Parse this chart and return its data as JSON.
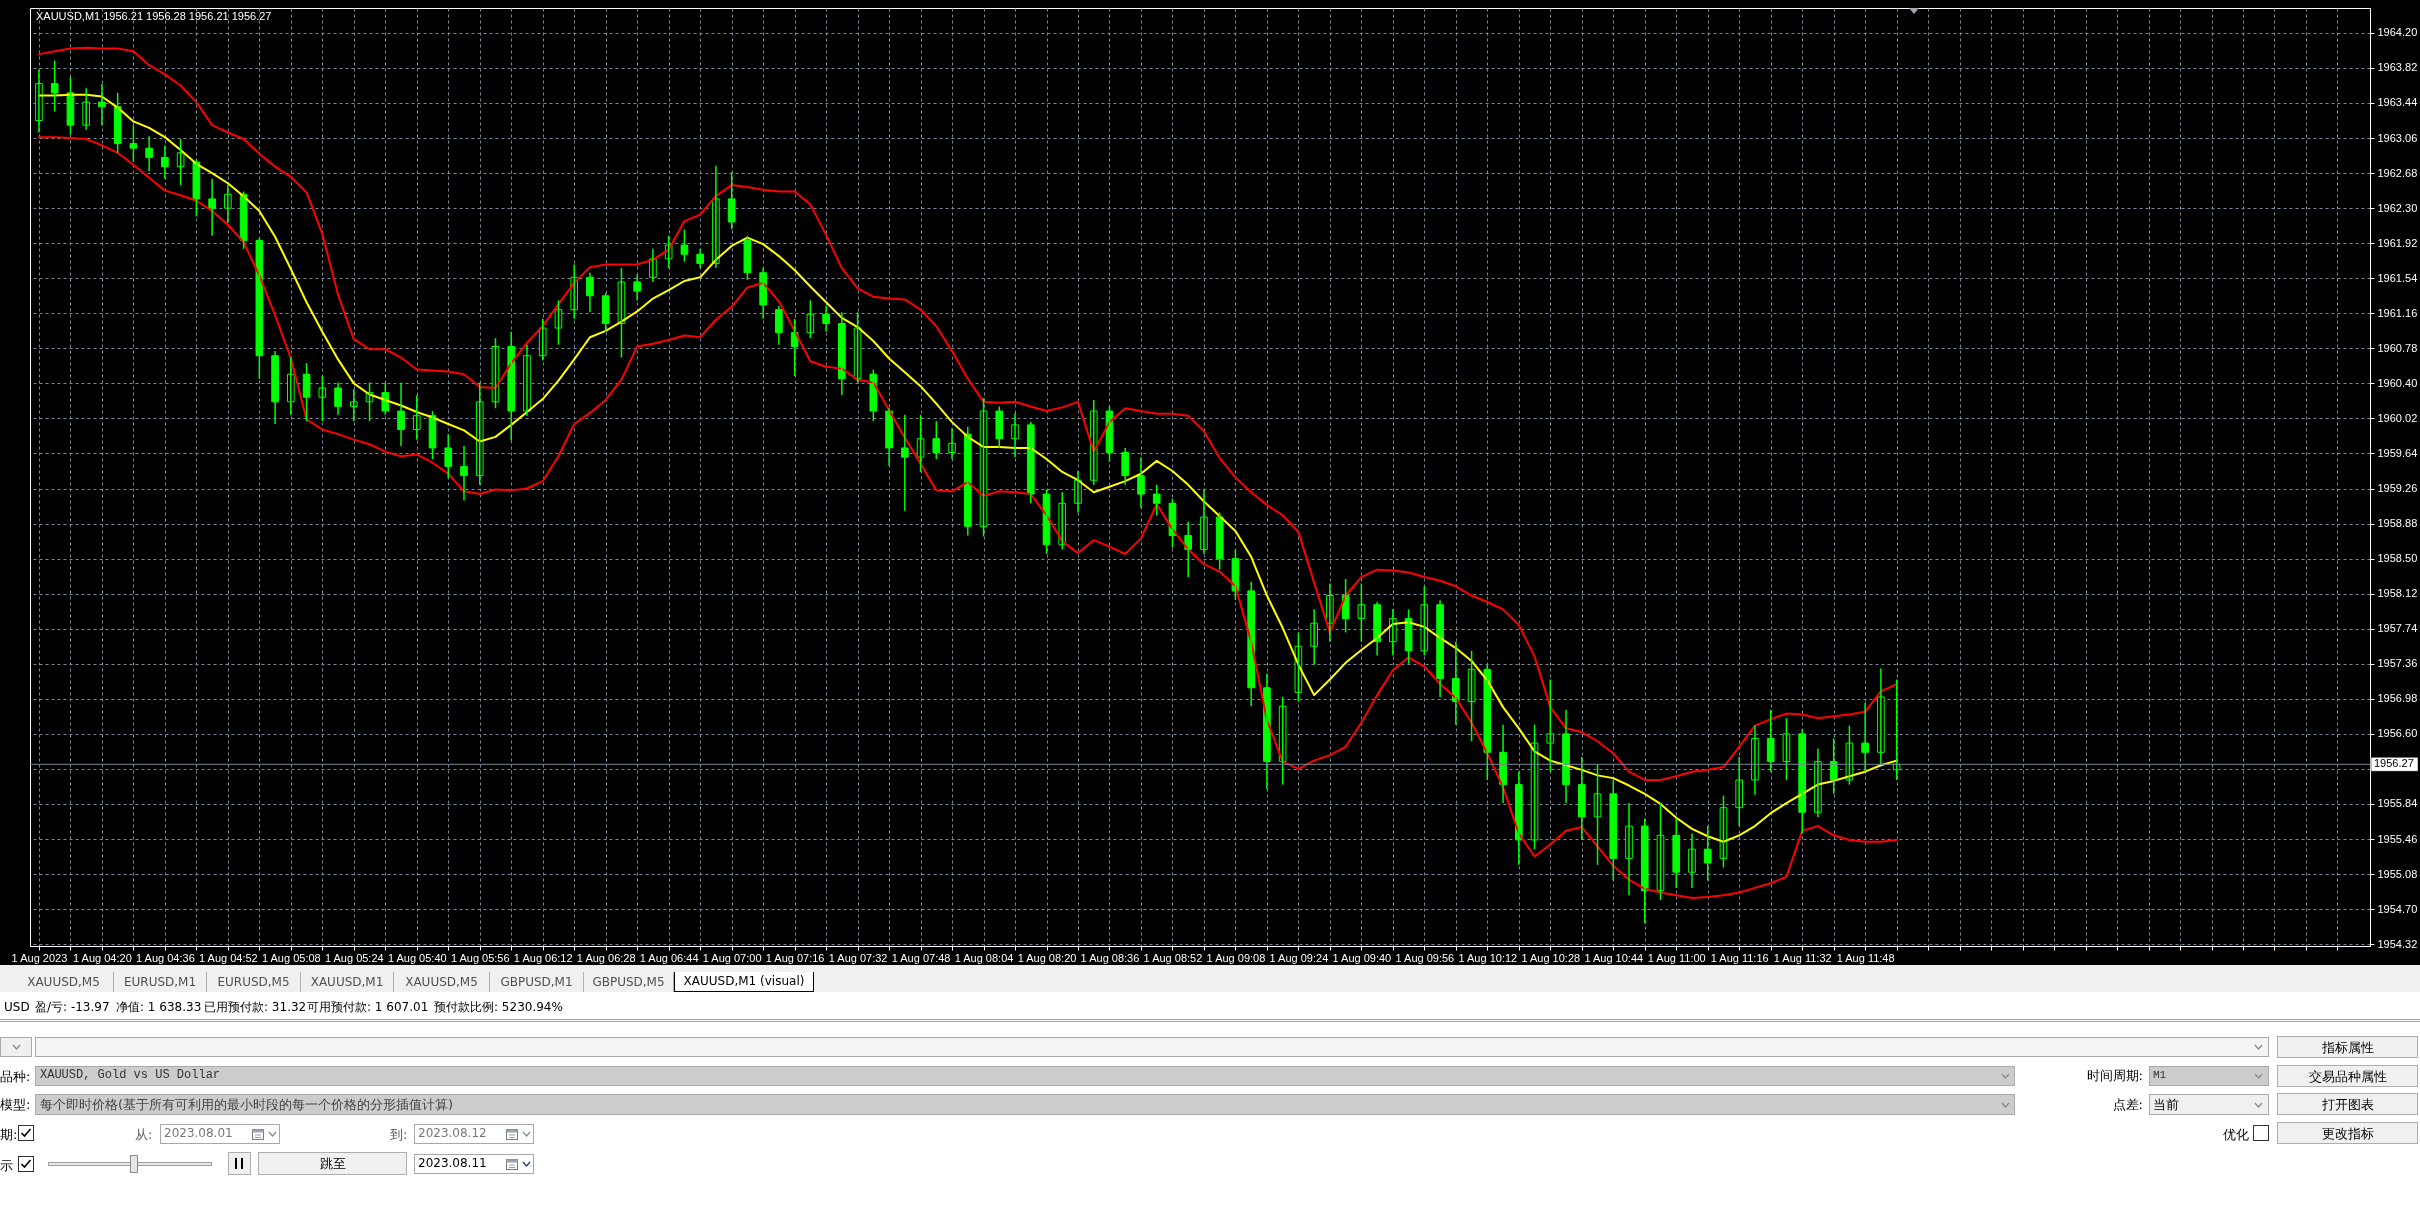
{
  "chart_data": {
    "type": "candlestick",
    "title": "XAUUSD,M1 1956.21 1956.28 1956.21 1956.27",
    "x": [
      "2023-08-01T04:04",
      "2023-08-01T04:08",
      "2023-08-01T04:12",
      "2023-08-01T04:16",
      "2023-08-01T04:20",
      "2023-08-01T04:24",
      "2023-08-01T04:28",
      "2023-08-01T04:32",
      "2023-08-01T04:36",
      "2023-08-01T04:40",
      "2023-08-01T04:44",
      "2023-08-01T04:48",
      "2023-08-01T04:52",
      "2023-08-01T04:56",
      "2023-08-01T05:00",
      "2023-08-01T05:04",
      "2023-08-01T05:08",
      "2023-08-01T05:12",
      "2023-08-01T05:16",
      "2023-08-01T05:20",
      "2023-08-01T05:24",
      "2023-08-01T05:28",
      "2023-08-01T05:32",
      "2023-08-01T05:36",
      "2023-08-01T05:40",
      "2023-08-01T05:44",
      "2023-08-01T05:48",
      "2023-08-01T05:52",
      "2023-08-01T05:56",
      "2023-08-01T06:00",
      "2023-08-01T06:04",
      "2023-08-01T06:08",
      "2023-08-01T06:12",
      "2023-08-01T06:16",
      "2023-08-01T06:20",
      "2023-08-01T06:24",
      "2023-08-01T06:28",
      "2023-08-01T06:32",
      "2023-08-01T06:36",
      "2023-08-01T06:40",
      "2023-08-01T06:44",
      "2023-08-01T06:48",
      "2023-08-01T06:52",
      "2023-08-01T06:56",
      "2023-08-01T07:00",
      "2023-08-01T07:04",
      "2023-08-01T07:08",
      "2023-08-01T07:12",
      "2023-08-01T07:16",
      "2023-08-01T07:20",
      "2023-08-01T07:24",
      "2023-08-01T07:28",
      "2023-08-01T07:32",
      "2023-08-01T07:36",
      "2023-08-01T07:40",
      "2023-08-01T07:44",
      "2023-08-01T07:48",
      "2023-08-01T07:52",
      "2023-08-01T07:56",
      "2023-08-01T08:00",
      "2023-08-01T08:04",
      "2023-08-01T08:08",
      "2023-08-01T08:12",
      "2023-08-01T08:16",
      "2023-08-01T08:20",
      "2023-08-01T08:24",
      "2023-08-01T08:28",
      "2023-08-01T08:32",
      "2023-08-01T08:36",
      "2023-08-01T08:40",
      "2023-08-01T08:44",
      "2023-08-01T08:48",
      "2023-08-01T08:52",
      "2023-08-01T08:56",
      "2023-08-01T09:00",
      "2023-08-01T09:04",
      "2023-08-01T09:08",
      "2023-08-01T09:12",
      "2023-08-01T09:16",
      "2023-08-01T09:20",
      "2023-08-01T09:24",
      "2023-08-01T09:28",
      "2023-08-01T09:32",
      "2023-08-01T09:36",
      "2023-08-01T09:40",
      "2023-08-01T09:44",
      "2023-08-01T09:48",
      "2023-08-01T09:52",
      "2023-08-01T09:56",
      "2023-08-01T10:00",
      "2023-08-01T10:04",
      "2023-08-01T10:08",
      "2023-08-01T10:12",
      "2023-08-01T10:16",
      "2023-08-01T10:20",
      "2023-08-01T10:24",
      "2023-08-01T10:28",
      "2023-08-01T10:32",
      "2023-08-01T10:36",
      "2023-08-01T10:40",
      "2023-08-01T10:44",
      "2023-08-01T10:48",
      "2023-08-01T10:52",
      "2023-08-01T10:56",
      "2023-08-01T11:00",
      "2023-08-01T11:04",
      "2023-08-01T11:08",
      "2023-08-01T11:12",
      "2023-08-01T11:16",
      "2023-08-01T11:20",
      "2023-08-01T11:24",
      "2023-08-01T11:28",
      "2023-08-01T11:32",
      "2023-08-01T11:36",
      "2023-08-01T11:40",
      "2023-08-01T11:44",
      "2023-08-01T11:48",
      "2023-08-01T11:52",
      "2023-08-01T11:56"
    ],
    "ohlc": [
      [
        1963.25,
        1963.8,
        1963.12,
        1963.65
      ],
      [
        1963.65,
        1963.9,
        1963.35,
        1963.55
      ],
      [
        1963.55,
        1963.72,
        1963.1,
        1963.2
      ],
      [
        1963.2,
        1963.6,
        1963.15,
        1963.45
      ],
      [
        1963.45,
        1963.65,
        1963.2,
        1963.4
      ],
      [
        1963.4,
        1963.55,
        1962.9,
        1963.0
      ],
      [
        1963.0,
        1963.2,
        1962.8,
        1962.95
      ],
      [
        1962.95,
        1963.08,
        1962.7,
        1962.85
      ],
      [
        1962.85,
        1962.98,
        1962.62,
        1962.75
      ],
      [
        1962.75,
        1963.05,
        1962.55,
        1962.9
      ],
      [
        1962.8,
        1962.83,
        1962.21,
        1962.4
      ],
      [
        1962.4,
        1962.62,
        1962.0,
        1962.3
      ],
      [
        1962.3,
        1962.55,
        1962.14,
        1962.45
      ],
      [
        1962.45,
        1962.48,
        1961.86,
        1961.95
      ],
      [
        1961.95,
        1961.98,
        1960.45,
        1960.7
      ],
      [
        1960.7,
        1960.75,
        1959.96,
        1960.2
      ],
      [
        1960.2,
        1960.68,
        1960.06,
        1960.5
      ],
      [
        1960.5,
        1960.62,
        1959.99,
        1960.25
      ],
      [
        1960.25,
        1960.48,
        1959.99,
        1960.35
      ],
      [
        1960.35,
        1960.41,
        1960.06,
        1960.15
      ],
      [
        1960.15,
        1960.34,
        1959.99,
        1960.2
      ],
      [
        1960.2,
        1960.41,
        1959.99,
        1960.3
      ],
      [
        1960.3,
        1960.41,
        1960.06,
        1960.1
      ],
      [
        1960.1,
        1960.41,
        1959.72,
        1959.9
      ],
      [
        1959.9,
        1960.27,
        1959.79,
        1960.05
      ],
      [
        1960.05,
        1960.1,
        1959.58,
        1959.7
      ],
      [
        1959.7,
        1959.85,
        1959.37,
        1959.5
      ],
      [
        1959.5,
        1959.72,
        1959.13,
        1959.4
      ],
      [
        1959.4,
        1960.41,
        1959.3,
        1960.2
      ],
      [
        1960.2,
        1960.89,
        1960.13,
        1960.8
      ],
      [
        1960.8,
        1960.96,
        1959.78,
        1960.1
      ],
      [
        1960.1,
        1960.82,
        1960.05,
        1960.7
      ],
      [
        1960.7,
        1961.1,
        1960.65,
        1961.0
      ],
      [
        1961.0,
        1961.3,
        1960.82,
        1961.2
      ],
      [
        1961.2,
        1961.69,
        1961.1,
        1961.55
      ],
      [
        1961.55,
        1961.6,
        1961.17,
        1961.35
      ],
      [
        1961.35,
        1961.38,
        1960.96,
        1961.05
      ],
      [
        1961.05,
        1961.65,
        1960.68,
        1961.5
      ],
      [
        1961.5,
        1961.58,
        1961.3,
        1961.4
      ],
      [
        1961.55,
        1961.86,
        1961.5,
        1961.75
      ],
      [
        1961.75,
        1962.0,
        1961.65,
        1961.9
      ],
      [
        1961.9,
        1962.07,
        1961.72,
        1961.8
      ],
      [
        1961.8,
        1961.86,
        1961.65,
        1961.7
      ],
      [
        1961.7,
        1962.76,
        1961.65,
        1962.4
      ],
      [
        1962.4,
        1962.69,
        1962.07,
        1962.15
      ],
      [
        1961.95,
        1962.0,
        1961.52,
        1961.6
      ],
      [
        1961.6,
        1961.65,
        1961.1,
        1961.25
      ],
      [
        1961.2,
        1961.24,
        1960.82,
        1960.95
      ],
      [
        1960.95,
        1961.1,
        1960.48,
        1960.8
      ],
      [
        1960.95,
        1961.3,
        1960.89,
        1961.15
      ],
      [
        1961.15,
        1961.24,
        1960.96,
        1961.05
      ],
      [
        1961.05,
        1961.17,
        1960.27,
        1960.45
      ],
      [
        1960.45,
        1961.17,
        1960.41,
        1961.0
      ],
      [
        1960.5,
        1960.55,
        1959.99,
        1960.1
      ],
      [
        1960.1,
        1960.13,
        1959.51,
        1959.7
      ],
      [
        1959.7,
        1960.06,
        1959.02,
        1959.6
      ],
      [
        1959.6,
        1960.06,
        1959.44,
        1959.8
      ],
      [
        1959.8,
        1959.99,
        1959.58,
        1959.65
      ],
      [
        1959.65,
        1959.92,
        1959.58,
        1959.75
      ],
      [
        1959.85,
        1959.93,
        1958.75,
        1958.85
      ],
      [
        1958.85,
        1960.24,
        1958.74,
        1960.1
      ],
      [
        1960.1,
        1960.15,
        1959.7,
        1959.8
      ],
      [
        1959.8,
        1960.08,
        1959.6,
        1959.95
      ],
      [
        1959.95,
        1959.98,
        1959.1,
        1959.2
      ],
      [
        1959.2,
        1959.25,
        1958.55,
        1958.65
      ],
      [
        1958.65,
        1959.22,
        1958.6,
        1959.1
      ],
      [
        1959.1,
        1959.45,
        1959.0,
        1959.35
      ],
      [
        1959.35,
        1960.22,
        1959.3,
        1960.1
      ],
      [
        1960.1,
        1960.15,
        1959.55,
        1959.65
      ],
      [
        1959.65,
        1959.7,
        1959.3,
        1959.4
      ],
      [
        1959.4,
        1959.6,
        1959.05,
        1959.2
      ],
      [
        1959.2,
        1959.3,
        1958.97,
        1959.1
      ],
      [
        1959.1,
        1959.15,
        1958.62,
        1958.75
      ],
      [
        1958.75,
        1958.9,
        1958.3,
        1958.6
      ],
      [
        1958.6,
        1959.25,
        1958.55,
        1958.95
      ],
      [
        1958.95,
        1959.0,
        1958.38,
        1958.5
      ],
      [
        1958.5,
        1958.6,
        1958.05,
        1958.15
      ],
      [
        1958.15,
        1958.25,
        1956.9,
        1957.1
      ],
      [
        1957.1,
        1957.25,
        1956.0,
        1956.3
      ],
      [
        1956.3,
        1957.0,
        1956.05,
        1956.9
      ],
      [
        1957.05,
        1957.7,
        1956.95,
        1957.55
      ],
      [
        1957.55,
        1957.95,
        1957.35,
        1957.8
      ],
      [
        1957.8,
        1958.23,
        1957.6,
        1958.1
      ],
      [
        1958.1,
        1958.28,
        1957.7,
        1957.85
      ],
      [
        1957.85,
        1958.23,
        1957.6,
        1958.0
      ],
      [
        1958.0,
        1958.03,
        1957.45,
        1957.6
      ],
      [
        1957.6,
        1957.95,
        1957.45,
        1957.85
      ],
      [
        1957.85,
        1957.95,
        1957.36,
        1957.5
      ],
      [
        1957.5,
        1958.2,
        1957.45,
        1958.0
      ],
      [
        1958.0,
        1958.05,
        1957.0,
        1957.2
      ],
      [
        1957.2,
        1957.6,
        1956.7,
        1956.95
      ],
      [
        1956.95,
        1957.5,
        1956.52,
        1957.3
      ],
      [
        1957.3,
        1957.35,
        1956.1,
        1956.4
      ],
      [
        1956.4,
        1956.7,
        1955.85,
        1956.05
      ],
      [
        1956.05,
        1956.19,
        1955.18,
        1955.45
      ],
      [
        1955.45,
        1956.7,
        1955.35,
        1956.5
      ],
      [
        1956.5,
        1957.19,
        1956.19,
        1956.6
      ],
      [
        1956.6,
        1956.86,
        1955.85,
        1956.05
      ],
      [
        1956.05,
        1956.35,
        1955.45,
        1955.7
      ],
      [
        1955.7,
        1956.27,
        1955.18,
        1955.95
      ],
      [
        1955.95,
        1956.1,
        1955.01,
        1955.25
      ],
      [
        1955.25,
        1955.85,
        1954.85,
        1955.6
      ],
      [
        1955.6,
        1955.68,
        1954.55,
        1954.9
      ],
      [
        1954.9,
        1955.85,
        1954.8,
        1955.5
      ],
      [
        1955.5,
        1955.68,
        1954.93,
        1955.1
      ],
      [
        1955.1,
        1955.52,
        1954.93,
        1955.35
      ],
      [
        1955.35,
        1955.6,
        1955.01,
        1955.2
      ],
      [
        1955.25,
        1955.93,
        1955.15,
        1955.8
      ],
      [
        1955.8,
        1956.35,
        1955.6,
        1956.1
      ],
      [
        1956.1,
        1956.69,
        1955.94,
        1956.55
      ],
      [
        1956.55,
        1956.86,
        1956.19,
        1956.3
      ],
      [
        1956.3,
        1956.77,
        1956.1,
        1956.6
      ],
      [
        1956.6,
        1956.65,
        1955.52,
        1955.75
      ],
      [
        1955.75,
        1956.44,
        1955.7,
        1956.3
      ],
      [
        1956.3,
        1956.55,
        1955.95,
        1956.1
      ],
      [
        1956.1,
        1956.69,
        1956.05,
        1956.5
      ],
      [
        1956.5,
        1956.94,
        1956.19,
        1956.4
      ],
      [
        1956.4,
        1957.31,
        1956.27,
        1957.0
      ],
      [
        1956.21,
        1957.19,
        1956.1,
        1956.27
      ]
    ],
    "color": "#00ff00",
    "series": [
      {
        "type": "line",
        "color": "#ff0000",
        "values": [
          1963.97,
          1964.0,
          1964.03,
          1964.04,
          1964.03,
          1964.03,
          1964.0,
          1963.85,
          1963.75,
          1963.63,
          1963.45,
          1963.2,
          1963.12,
          1963.05,
          1962.89,
          1962.75,
          1962.64,
          1962.47,
          1962.02,
          1961.36,
          1960.88,
          1960.77,
          1960.77,
          1960.68,
          1960.55,
          1960.54,
          1960.53,
          1960.5,
          1960.36,
          1960.35,
          1960.62,
          1960.84,
          1961.02,
          1961.26,
          1961.49,
          1961.66,
          1961.69,
          1961.69,
          1961.69,
          1961.74,
          1961.85,
          1962.16,
          1962.23,
          1962.43,
          1962.55,
          1962.53,
          1962.5,
          1962.48,
          1962.48,
          1962.34,
          1962.01,
          1961.65,
          1961.43,
          1961.34,
          1961.32,
          1961.31,
          1961.2,
          1961.02,
          1960.75,
          1960.45,
          1960.2,
          1960.19,
          1960.2,
          1960.15,
          1960.1,
          1960.14,
          1960.2,
          1959.66,
          1959.98,
          1960.13,
          1960.1,
          1960.07,
          1960.07,
          1960.05,
          1959.88,
          1959.59,
          1959.38,
          1959.22,
          1959.08,
          1958.97,
          1958.79,
          1958.24,
          1957.7,
          1958.1,
          1958.3,
          1958.38,
          1958.37,
          1958.35,
          1958.3,
          1958.26,
          1958.2,
          1958.1,
          1958.03,
          1957.95,
          1957.78,
          1957.44,
          1956.89,
          1956.66,
          1956.62,
          1956.52,
          1956.39,
          1956.19,
          1956.1,
          1956.1,
          1956.14,
          1956.19,
          1956.21,
          1956.24,
          1956.46,
          1956.69,
          1956.76,
          1956.82,
          1956.81,
          1956.77,
          1956.79,
          1956.81,
          1956.84,
          1957.06,
          1957.14
        ]
      },
      {
        "type": "line",
        "color": "#ffff00",
        "values": [
          1963.52,
          1963.52,
          1963.53,
          1963.53,
          1963.51,
          1963.39,
          1963.24,
          1963.17,
          1963.07,
          1962.93,
          1962.78,
          1962.68,
          1962.57,
          1962.43,
          1962.27,
          1961.99,
          1961.64,
          1961.28,
          1960.96,
          1960.66,
          1960.4,
          1960.28,
          1960.22,
          1960.16,
          1960.09,
          1960.03,
          1959.96,
          1959.89,
          1959.77,
          1959.82,
          1959.95,
          1960.09,
          1960.23,
          1960.43,
          1960.66,
          1960.9,
          1960.97,
          1961.07,
          1961.18,
          1961.32,
          1961.41,
          1961.51,
          1961.55,
          1961.74,
          1961.89,
          1961.98,
          1961.91,
          1961.78,
          1961.63,
          1961.45,
          1961.28,
          1961.11,
          1961.01,
          1960.86,
          1960.67,
          1960.52,
          1960.37,
          1960.18,
          1959.98,
          1959.82,
          1959.71,
          1959.71,
          1959.7,
          1959.7,
          1959.58,
          1959.44,
          1959.35,
          1959.22,
          1959.28,
          1959.34,
          1959.42,
          1959.56,
          1959.45,
          1959.3,
          1959.12,
          1958.96,
          1958.8,
          1958.52,
          1958.1,
          1957.75,
          1957.35,
          1957.02,
          1957.19,
          1957.37,
          1957.51,
          1957.64,
          1957.79,
          1957.81,
          1957.76,
          1957.64,
          1957.53,
          1957.39,
          1957.18,
          1956.89,
          1956.66,
          1956.41,
          1956.31,
          1956.26,
          1956.21,
          1956.15,
          1956.12,
          1956.04,
          1955.95,
          1955.84,
          1955.69,
          1955.57,
          1955.49,
          1955.43,
          1955.5,
          1955.6,
          1955.74,
          1955.85,
          1955.95,
          1956.05,
          1956.09,
          1956.14,
          1956.19,
          1956.26,
          1956.31
        ]
      },
      {
        "type": "line",
        "color": "#ff0000",
        "values": [
          1963.07,
          1963.07,
          1963.06,
          1963.05,
          1962.98,
          1962.9,
          1962.77,
          1962.63,
          1962.49,
          1962.44,
          1962.38,
          1962.27,
          1962.12,
          1961.93,
          1961.57,
          1961.14,
          1960.67,
          1960.01,
          1959.9,
          1959.85,
          1959.79,
          1959.74,
          1959.66,
          1959.61,
          1959.63,
          1959.54,
          1959.42,
          1959.23,
          1959.2,
          1959.25,
          1959.24,
          1959.26,
          1959.34,
          1959.61,
          1959.96,
          1960.08,
          1960.22,
          1960.44,
          1960.8,
          1960.83,
          1960.87,
          1960.92,
          1960.9,
          1961.09,
          1961.23,
          1961.44,
          1961.49,
          1961.29,
          1960.97,
          1960.64,
          1960.58,
          1960.56,
          1960.44,
          1960.41,
          1960.11,
          1959.81,
          1959.53,
          1959.24,
          1959.23,
          1959.33,
          1959.18,
          1959.23,
          1959.22,
          1959.2,
          1958.97,
          1958.69,
          1958.56,
          1958.7,
          1958.63,
          1958.55,
          1958.72,
          1959.09,
          1958.82,
          1958.6,
          1958.44,
          1958.36,
          1958.2,
          1957.6,
          1956.75,
          1956.3,
          1956.22,
          1956.31,
          1956.37,
          1956.46,
          1956.72,
          1957.02,
          1957.29,
          1957.43,
          1957.33,
          1957.14,
          1956.99,
          1956.72,
          1956.39,
          1956.02,
          1955.52,
          1955.27,
          1955.4,
          1955.55,
          1955.59,
          1955.38,
          1955.17,
          1955.02,
          1954.92,
          1954.88,
          1954.85,
          1954.82,
          1954.83,
          1954.85,
          1954.88,
          1954.93,
          1954.98,
          1955.05,
          1955.55,
          1955.6,
          1955.5,
          1955.45,
          1955.43,
          1955.43,
          1955.45
        ]
      }
    ],
    "xlim": [
      "2023-08-01T04:03",
      "2023-08-01T13:55"
    ],
    "xticks": [
      {
        "value": "2023-08-01T04:04",
        "label": "1 Aug 2023"
      },
      {
        "value": "2023-08-01T04:12",
        "label": null
      },
      {
        "value": "2023-08-01T04:20",
        "label": "1 Aug 04:20"
      },
      {
        "value": "2023-08-01T04:28",
        "label": null
      },
      {
        "value": "2023-08-01T04:36",
        "label": "1 Aug 04:36"
      },
      {
        "value": "2023-08-01T04:44",
        "label": null
      },
      {
        "value": "2023-08-01T04:52",
        "label": "1 Aug 04:52"
      },
      {
        "value": "2023-08-01T05:00",
        "label": null
      },
      {
        "value": "2023-08-01T05:08",
        "label": "1 Aug 05:08"
      },
      {
        "value": "2023-08-01T05:16",
        "label": null
      },
      {
        "value": "2023-08-01T05:24",
        "label": "1 Aug 05:24"
      },
      {
        "value": "2023-08-01T05:32",
        "label": null
      },
      {
        "value": "2023-08-01T05:40",
        "label": "1 Aug 05:40"
      },
      {
        "value": "2023-08-01T05:48",
        "label": null
      },
      {
        "value": "2023-08-01T05:56",
        "label": "1 Aug 05:56"
      },
      {
        "value": "2023-08-01T06:04",
        "label": null
      },
      {
        "value": "2023-08-01T06:12",
        "label": "1 Aug 06:12"
      },
      {
        "value": "2023-08-01T06:20",
        "label": null
      },
      {
        "value": "2023-08-01T06:28",
        "label": "1 Aug 06:28"
      },
      {
        "value": "2023-08-01T06:36",
        "label": null
      },
      {
        "value": "2023-08-01T06:44",
        "label": "1 Aug 06:44"
      },
      {
        "value": "2023-08-01T06:52",
        "label": null
      },
      {
        "value": "2023-08-01T07:00",
        "label": "1 Aug 07:00"
      },
      {
        "value": "2023-08-01T07:08",
        "label": null
      },
      {
        "value": "2023-08-01T07:16",
        "label": "1 Aug 07:16"
      },
      {
        "value": "2023-08-01T07:24",
        "label": null
      },
      {
        "value": "2023-08-01T07:32",
        "label": "1 Aug 07:32"
      },
      {
        "value": "2023-08-01T07:40",
        "label": null
      },
      {
        "value": "2023-08-01T07:48",
        "label": "1 Aug 07:48"
      },
      {
        "value": "2023-08-01T07:56",
        "label": null
      },
      {
        "value": "2023-08-01T08:04",
        "label": "1 Aug 08:04"
      },
      {
        "value": "2023-08-01T08:12",
        "label": null
      },
      {
        "value": "2023-08-01T08:20",
        "label": "1 Aug 08:20"
      },
      {
        "value": "2023-08-01T08:28",
        "label": null
      },
      {
        "value": "2023-08-01T08:36",
        "label": "1 Aug 08:36"
      },
      {
        "value": "2023-08-01T08:44",
        "label": null
      },
      {
        "value": "2023-08-01T08:52",
        "label": "1 Aug 08:52"
      },
      {
        "value": "2023-08-01T09:00",
        "label": null
      },
      {
        "value": "2023-08-01T09:08",
        "label": "1 Aug 09:08"
      },
      {
        "value": "2023-08-01T09:16",
        "label": null
      },
      {
        "value": "2023-08-01T09:24",
        "label": "1 Aug 09:24"
      },
      {
        "value": "2023-08-01T09:32",
        "label": null
      },
      {
        "value": "2023-08-01T09:40",
        "label": "1 Aug 09:40"
      },
      {
        "value": "2023-08-01T09:48",
        "label": null
      },
      {
        "value": "2023-08-01T09:56",
        "label": "1 Aug 09:56"
      },
      {
        "value": "2023-08-01T10:04",
        "label": null
      },
      {
        "value": "2023-08-01T10:12",
        "label": "1 Aug 10:12"
      },
      {
        "value": "2023-08-01T10:20",
        "label": null
      },
      {
        "value": "2023-08-01T10:28",
        "label": "1 Aug 10:28"
      },
      {
        "value": "2023-08-01T10:36",
        "label": null
      },
      {
        "value": "2023-08-01T10:44",
        "label": "1 Aug 10:44"
      },
      {
        "value": "2023-08-01T10:52",
        "label": null
      },
      {
        "value": "2023-08-01T11:00",
        "label": "1 Aug 11:00"
      },
      {
        "value": "2023-08-01T11:08",
        "label": null
      },
      {
        "value": "2023-08-01T11:16",
        "label": "1 Aug 11:16"
      },
      {
        "value": "2023-08-01T11:24",
        "label": null
      },
      {
        "value": "2023-08-01T11:32",
        "label": "1 Aug 11:32"
      },
      {
        "value": "2023-08-01T11:40",
        "label": null
      },
      {
        "value": "2023-08-01T11:48",
        "label": "1 Aug 11:48"
      },
      {
        "value": "2023-08-01T11:56",
        "label": null
      },
      {
        "value": "2023-08-01T12:04",
        "label": null
      },
      {
        "value": "2023-08-01T12:12",
        "label": null
      },
      {
        "value": "2023-08-01T12:20",
        "label": null
      },
      {
        "value": "2023-08-01T12:28",
        "label": null
      },
      {
        "value": "2023-08-01T12:36",
        "label": null
      },
      {
        "value": "2023-08-01T12:44",
        "label": null
      },
      {
        "value": "2023-08-01T12:52",
        "label": null
      },
      {
        "value": "2023-08-01T13:00",
        "label": null
      },
      {
        "value": "2023-08-01T13:08",
        "label": null
      },
      {
        "value": "2023-08-01T13:16",
        "label": null
      },
      {
        "value": "2023-08-01T13:24",
        "label": null
      },
      {
        "value": "2023-08-01T13:32",
        "label": null
      },
      {
        "value": "2023-08-01T13:40",
        "label": null
      },
      {
        "value": "2023-08-01T13:48",
        "label": null
      }
    ],
    "ylim": [
      1954.3,
      1964.47
    ],
    "yticks": [
      {
        "value": 1964.2,
        "label": "1964.20"
      },
      {
        "value": 1963.82,
        "label": "1963.82"
      },
      {
        "value": 1963.44,
        "label": "1963.44"
      },
      {
        "value": 1963.06,
        "label": "1963.06"
      },
      {
        "value": 1962.68,
        "label": "1962.68"
      },
      {
        "value": 1962.3,
        "label": "1962.30"
      },
      {
        "value": 1961.92,
        "label": "1961.92"
      },
      {
        "value": 1961.54,
        "label": "1961.54"
      },
      {
        "value": 1961.16,
        "label": "1961.16"
      },
      {
        "value": 1960.78,
        "label": "1960.78"
      },
      {
        "value": 1960.4,
        "label": "1960.40"
      },
      {
        "value": 1960.02,
        "label": "1960.02"
      },
      {
        "value": 1959.64,
        "label": "1959.64"
      },
      {
        "value": 1959.26,
        "label": "1959.26"
      },
      {
        "value": 1958.88,
        "label": "1958.88"
      },
      {
        "value": 1958.5,
        "label": "1958.50"
      },
      {
        "value": 1958.12,
        "label": "1958.12"
      },
      {
        "value": 1957.74,
        "label": "1957.74"
      },
      {
        "value": 1957.36,
        "label": "1957.36"
      },
      {
        "value": 1956.98,
        "label": "1956.98"
      },
      {
        "value": 1956.6,
        "label": "1956.60"
      },
      {
        "value": 1956.22,
        "label": null
      },
      {
        "value": 1955.84,
        "label": "1955.84"
      },
      {
        "value": 1955.46,
        "label": "1955.46"
      },
      {
        "value": 1955.08,
        "label": "1955.08"
      },
      {
        "value": 1954.7,
        "label": "1954.70"
      },
      {
        "value": 1954.32,
        "label": "1954.32"
      }
    ],
    "grid": true,
    "ref_lines": [
      {
        "axis": "y",
        "value": 1956.27,
        "label": "1956.27",
        "color": "#778899"
      }
    ],
    "annotations": [
      "XAUUSD,M5",
      "EURUSD,M1",
      "EURUSD,M5",
      "XAUUSD,M1",
      "XAUUSD,M5",
      "GBPUSD,M1",
      "GBPUSD,M5",
      "XAUUSD,M1 (visual)",
      "USD",
      "盈/亏: -13.97",
      "净值: 1 638.33",
      "已用预付款: 31.32",
      "可用预付款: 1 607.01",
      "预付款比例: 5230.94%",
      "品种:",
      "XAUUSD, Gold vs US Dollar",
      "模型:",
      "每个即时价格(基于所有可利用的最小时段的每一个价格的分形插值计算)",
      "期:",
      "从:",
      "2023.08.01",
      "到:",
      "2023.08.12",
      "示",
      "跳至",
      "2023.08.11",
      "时间周期:",
      "M1",
      "点差:",
      "当前",
      "优化",
      "指标属性",
      "交易品种属性",
      "打开图表",
      "更改指标"
    ]
  }
}
